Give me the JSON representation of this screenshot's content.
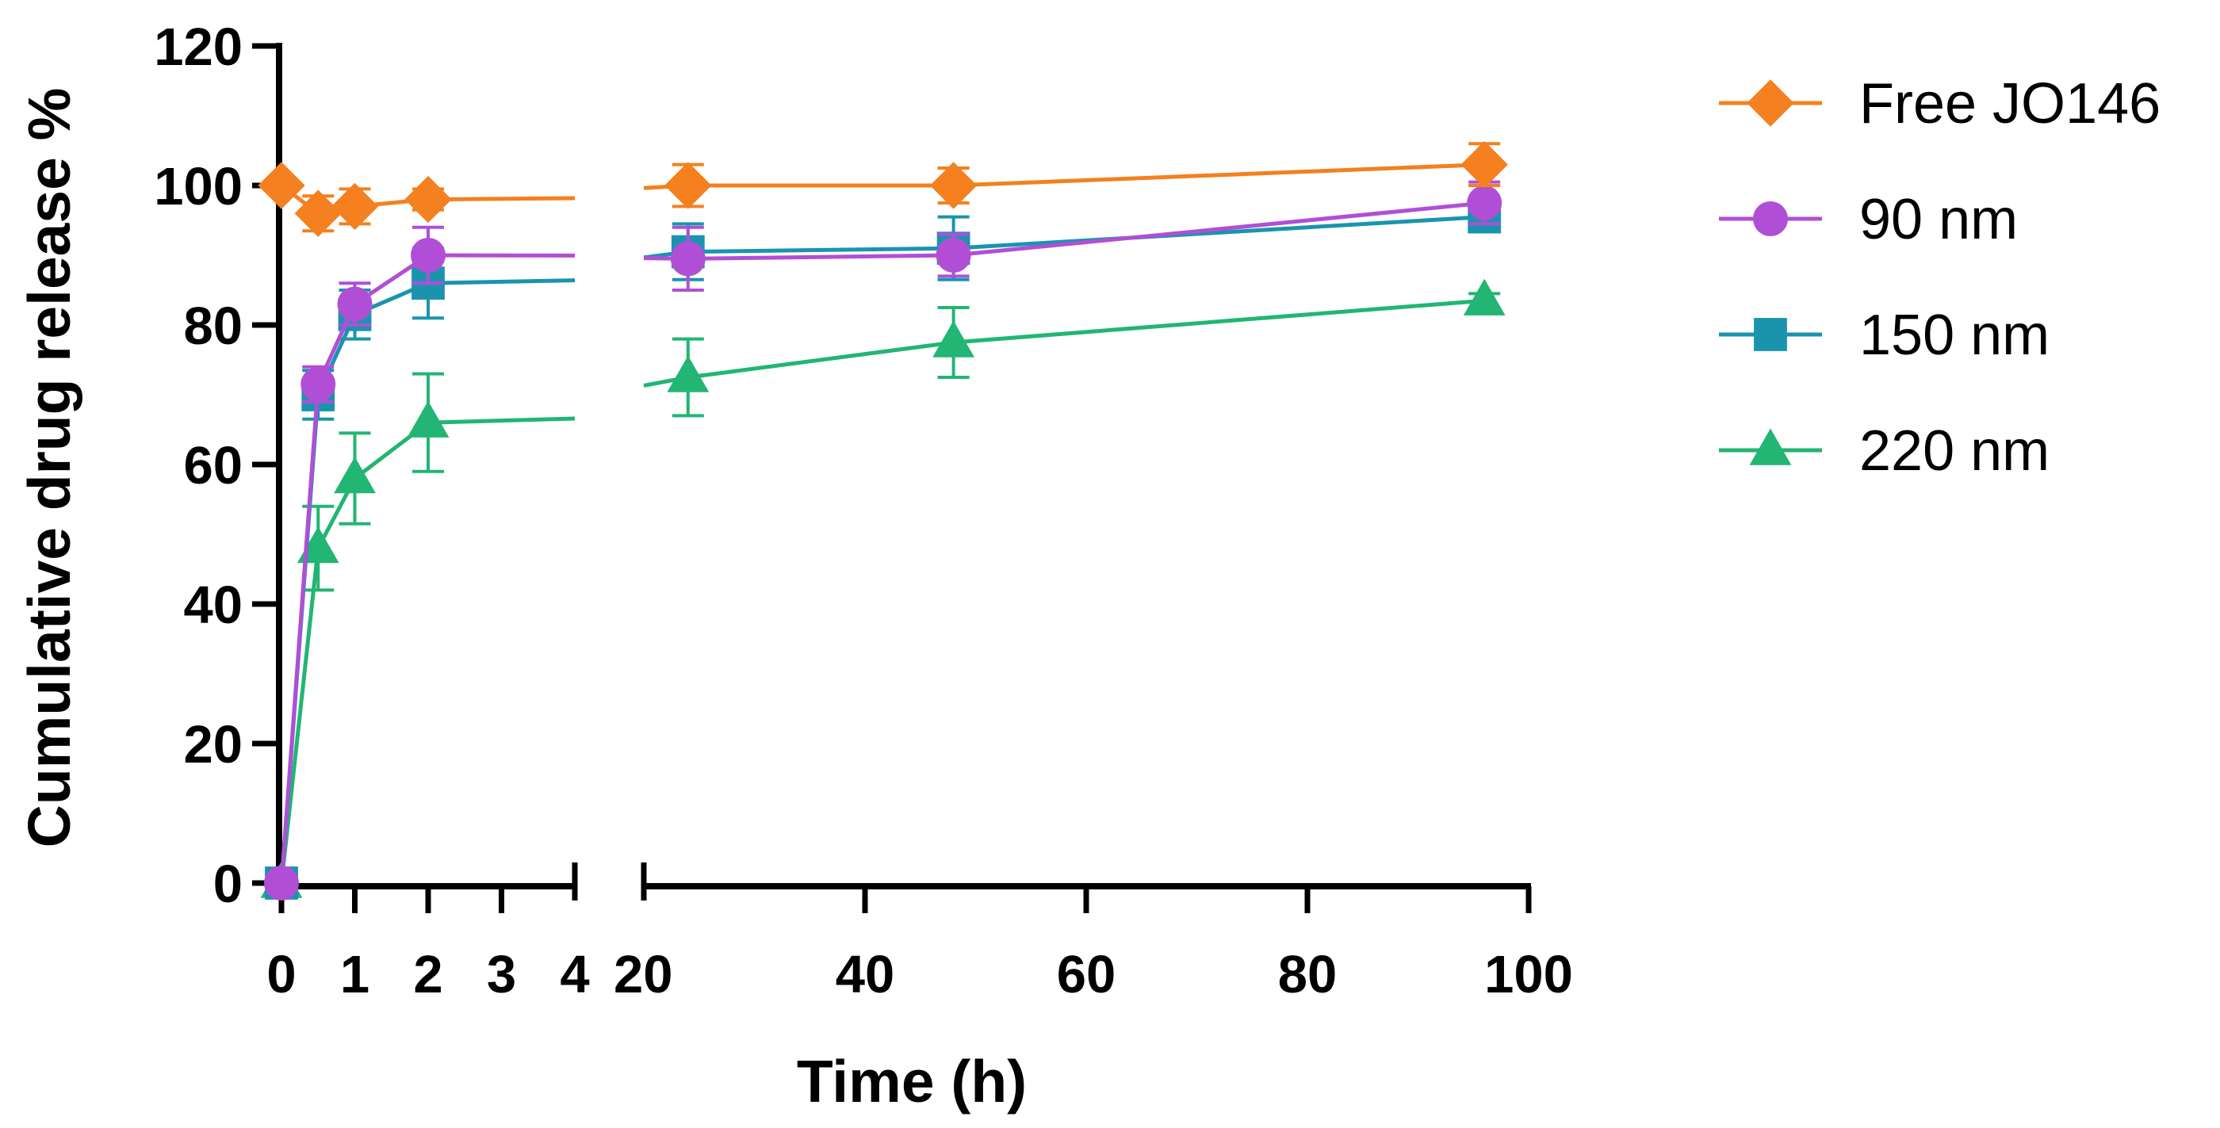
{
  "chart_data": {
    "type": "line",
    "title": "",
    "xlabel": "Time (h)",
    "ylabel": "Cumulative drug release %",
    "ylim": [
      0,
      120
    ],
    "yticks": [
      "0",
      "20",
      "40",
      "60",
      "80",
      "100",
      "120"
    ],
    "x_segments": [
      {
        "xlim": [
          0,
          4
        ],
        "ticks": [
          "0",
          "1",
          "2",
          "3",
          "4"
        ]
      },
      {
        "xlim": [
          20,
          100
        ],
        "ticks": [
          "20",
          "40",
          "60",
          "80",
          "100"
        ]
      }
    ],
    "grid": false,
    "legend_position": "right",
    "series": [
      {
        "name": "Free JO146",
        "color": "#F4801F",
        "marker": "diamond",
        "x": [
          0,
          0.5,
          1,
          2,
          24,
          48,
          96
        ],
        "y": [
          100,
          96,
          97,
          98,
          100,
          100,
          103
        ],
        "err": [
          0,
          2.5,
          2.5,
          1.5,
          3,
          2.5,
          3
        ]
      },
      {
        "name": "90 nm",
        "color": "#B04FD6",
        "marker": "circle",
        "x": [
          0,
          0.5,
          1,
          2,
          24,
          48,
          96
        ],
        "y": [
          0,
          71.5,
          83,
          90,
          89.5,
          90,
          97.5
        ],
        "err": [
          0,
          2.5,
          3,
          4,
          4.5,
          3,
          3
        ]
      },
      {
        "name": "150 nm",
        "color": "#1A94AE",
        "marker": "square",
        "x": [
          0,
          0.5,
          1,
          2,
          24,
          48,
          96
        ],
        "y": [
          0,
          70,
          81.5,
          86,
          90.5,
          91,
          95.5
        ],
        "err": [
          0,
          3.5,
          3.5,
          5,
          4,
          4.5,
          2
        ]
      },
      {
        "name": "220 nm",
        "color": "#22B573",
        "marker": "triangle",
        "x": [
          0,
          0.5,
          1,
          2,
          24,
          48,
          96
        ],
        "y": [
          0,
          48,
          58,
          66,
          72.5,
          77.5,
          83.5
        ],
        "err": [
          0,
          6,
          6.5,
          7,
          5.5,
          5,
          1
        ]
      }
    ]
  }
}
